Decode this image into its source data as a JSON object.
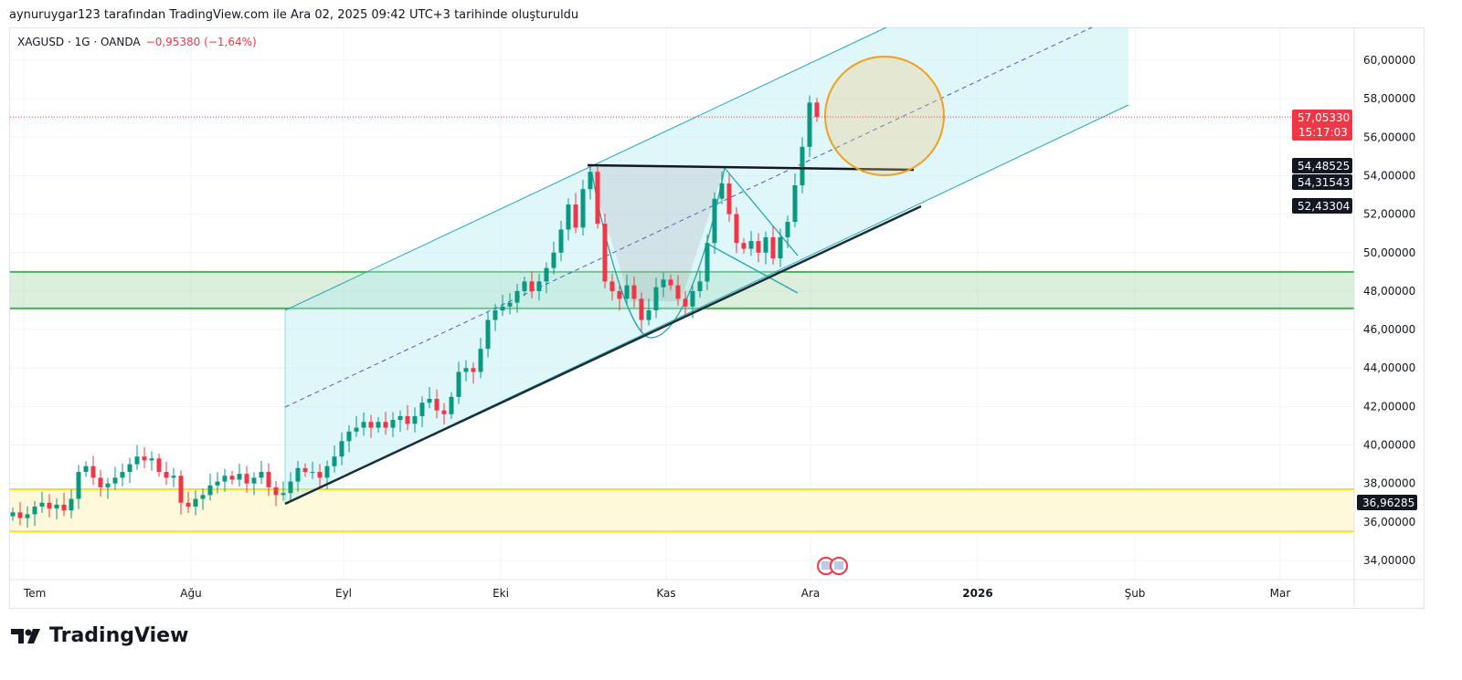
{
  "header": {
    "attribution": "aynuruygar123 tarafından TradingView.com ile Ara 02, 2025 09:42 UTC+3 tarihinde oluşturuldu"
  },
  "symbol": {
    "name": "XAGUSD · 1G · OANDA",
    "change": "−0,95380 (−1,64%)"
  },
  "logo": {
    "text": "TradingView"
  },
  "colors": {
    "up": "#089981",
    "down": "#f23645",
    "channel": "#b2ebf2",
    "green_zone": "#4caf50",
    "yellow_zone": "#ffeb3b",
    "circle": "#f0a020"
  },
  "chart_data": {
    "type": "candlestick",
    "title": "XAGUSD · 1G · OANDA",
    "ylim": [
      33,
      61
    ],
    "y_ticks": [
      "60,00000",
      "58,00000",
      "56,00000",
      "54,00000",
      "52,00000",
      "50,00000",
      "48,00000",
      "46,00000",
      "44,00000",
      "42,00000",
      "40,00000",
      "38,00000",
      "36,00000",
      "34,00000"
    ],
    "y_tick_values": [
      60,
      58,
      56,
      54,
      52,
      50,
      48,
      46,
      44,
      42,
      40,
      38,
      36,
      34
    ],
    "x_ticks": [
      "Tem",
      "Ağu",
      "Eyl",
      "Eki",
      "Kas",
      "Ara",
      "2026",
      "Şub",
      "Mar"
    ],
    "closes": [
      36.5,
      36.2,
      36.4,
      36.8,
      37.0,
      36.7,
      36.9,
      36.6,
      37.2,
      38.6,
      38.9,
      38.3,
      37.8,
      38.0,
      38.3,
      38.6,
      39.0,
      39.4,
      39.2,
      39.3,
      38.6,
      38.3,
      38.4,
      37.0,
      36.8,
      37.2,
      37.4,
      37.9,
      38.1,
      38.4,
      38.2,
      38.5,
      38.0,
      38.3,
      38.6,
      37.8,
      37.4,
      37.5,
      38.1,
      38.8,
      38.6,
      38.6,
      38.3,
      38.9,
      39.4,
      40.2,
      40.7,
      40.9,
      41.2,
      40.9,
      41.2,
      40.9,
      41.3,
      41.5,
      41.1,
      41.5,
      42.2,
      42.4,
      41.8,
      41.6,
      42.5,
      43.8,
      44.0,
      43.8,
      45.0,
      46.5,
      47.0,
      47.2,
      47.4,
      48.0,
      48.5,
      48.0,
      48.5,
      49.2,
      50.0,
      51.2,
      52.5,
      51.3,
      53.3,
      54.2,
      51.5,
      48.5,
      48.0,
      47.6,
      48.3,
      47.6,
      46.5,
      47.0,
      48.2,
      48.6,
      48.3,
      47.6,
      47.2,
      48.0,
      48.5,
      50.5,
      52.8,
      53.6,
      52.0,
      50.5,
      50.2,
      50.6,
      50.0,
      50.8,
      49.7,
      50.8,
      51.6,
      53.5,
      55.5,
      57.8,
      57.05
    ],
    "price_labels": [
      {
        "value": 57.0533,
        "text": "57,05330",
        "sub": "15:17:03",
        "kind": "last"
      },
      {
        "value": 54.48525,
        "text": "54,48525",
        "kind": "line"
      },
      {
        "value": 54.31543,
        "text": "54,31543",
        "kind": "line"
      },
      {
        "value": 52.43304,
        "text": "52,43304",
        "kind": "line"
      },
      {
        "value": 36.96285,
        "text": "36,96285",
        "kind": "line"
      }
    ],
    "zones": [
      {
        "name": "green-zone",
        "from": 47.1,
        "to": 49.0
      },
      {
        "name": "yellow-zone",
        "from": 35.5,
        "to": 37.7
      }
    ]
  }
}
